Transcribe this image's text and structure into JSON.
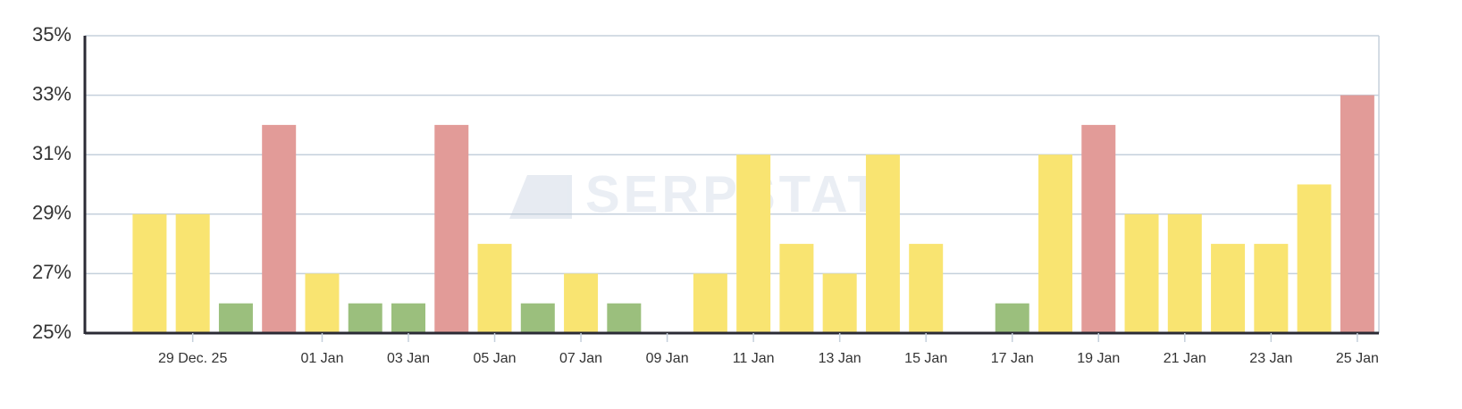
{
  "chart_data": {
    "type": "bar",
    "watermark": "SERPSTAT",
    "categories": [
      null,
      null,
      "29 Dec. 25",
      null,
      null,
      "01 Jan",
      null,
      "03 Jan",
      null,
      "05 Jan",
      null,
      "07 Jan",
      null,
      "09 Jan",
      null,
      "11 Jan",
      null,
      "13 Jan",
      null,
      "15 Jan",
      null,
      "17 Jan",
      null,
      "19 Jan",
      null,
      "21 Jan",
      null,
      "23 Jan",
      null,
      "25 Jan"
    ],
    "values": [
      null,
      29,
      29,
      26,
      32,
      27,
      26,
      26,
      32,
      28,
      26,
      27,
      26,
      null,
      27,
      31,
      28,
      27,
      31,
      28,
      null,
      26,
      31,
      32,
      29,
      29,
      28,
      28,
      30,
      33
    ],
    "colors": [
      null,
      "#f9e471",
      "#f9e471",
      "#9bbf7d",
      "#e29b98",
      "#f9e471",
      "#9bbf7d",
      "#9bbf7d",
      "#e29b98",
      "#f9e471",
      "#9bbf7d",
      "#f9e471",
      "#9bbf7d",
      null,
      "#f9e471",
      "#f9e471",
      "#f9e471",
      "#f9e471",
      "#f9e471",
      "#f9e471",
      null,
      "#9bbf7d",
      "#f9e471",
      "#e29b98",
      "#f9e471",
      "#f9e471",
      "#f9e471",
      "#f9e471",
      "#f9e471",
      "#e29b98"
    ],
    "ylim": [
      25,
      35
    ],
    "yticks": [
      {
        "value": 25,
        "label": "25%"
      },
      {
        "value": 27,
        "label": "27%"
      },
      {
        "value": 29,
        "label": "29%"
      },
      {
        "value": 31,
        "label": "31%"
      },
      {
        "value": 33,
        "label": "33%"
      },
      {
        "value": 35,
        "label": "35%"
      }
    ],
    "grid": true
  }
}
